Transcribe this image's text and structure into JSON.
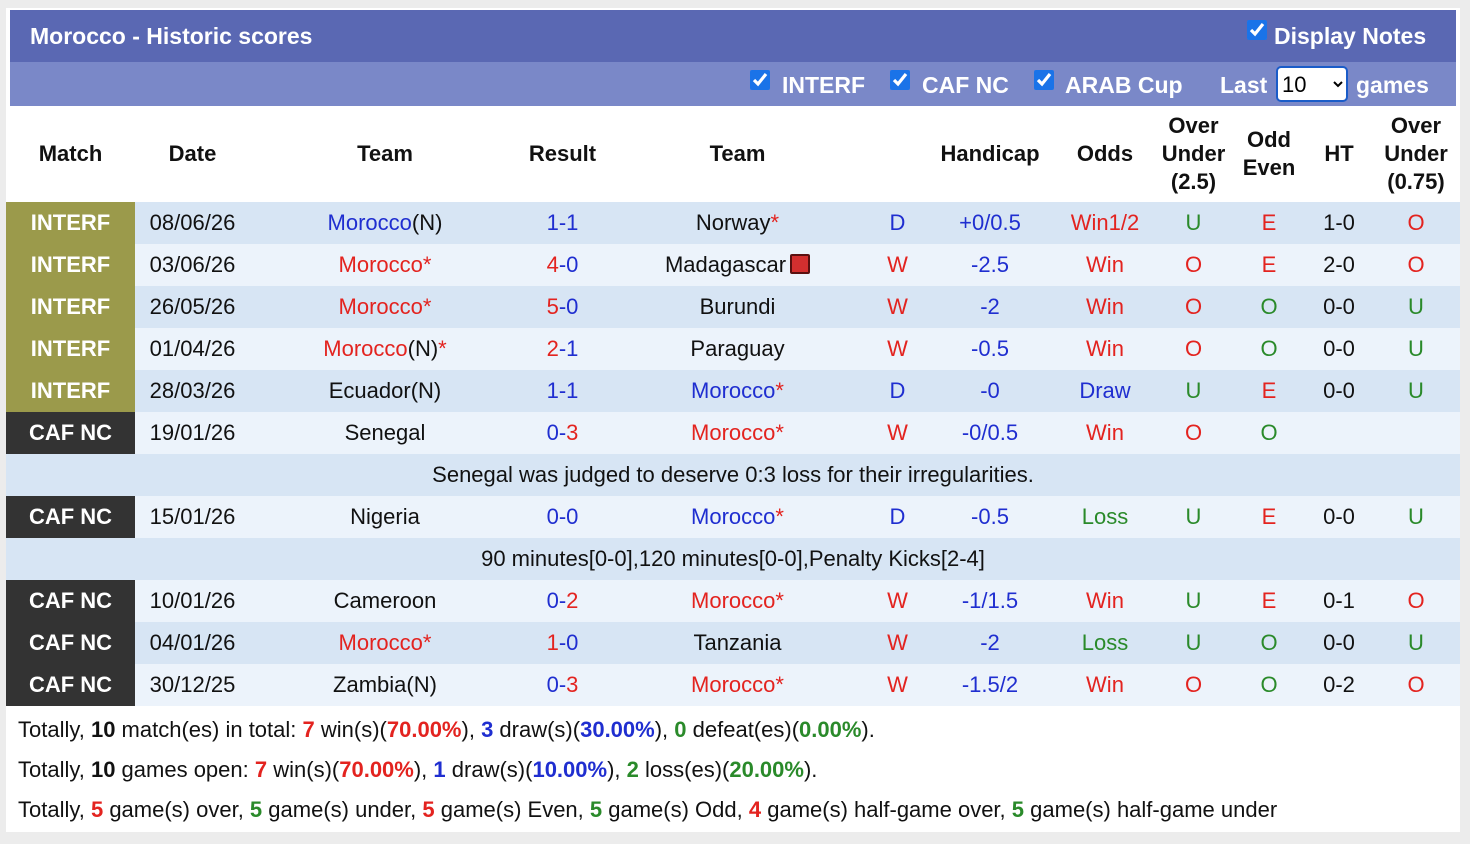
{
  "header": {
    "title": "Morocco - Historic scores",
    "display_notes": "Display Notes",
    "filters": [
      "INTERF",
      "CAF NC",
      "ARAB Cup"
    ],
    "last_label": "Last",
    "last_value": "10",
    "games_label": "games"
  },
  "colors": {
    "red": "#e3231f",
    "blue": "#1f2ed0",
    "green": "#2a8a2a",
    "black": "#111111",
    "INTERF": "#9b9a4b",
    "CAF NC": "#333333"
  },
  "palettes": {
    "outcome": {
      "W": "red",
      "D": "blue"
    },
    "odds": {
      "Win": "red",
      "Win1/2": "red",
      "Draw": "blue",
      "Loss": "green"
    },
    "ou": {
      "O": "red",
      "U": "green"
    },
    "oe": {
      "E": "red",
      "O": "green"
    }
  },
  "table": {
    "columns": [
      "Match",
      "Date",
      "Team",
      "Result",
      "Team",
      null,
      "Handicap",
      "Odds",
      "Over Under (2.5)",
      "Odd Even",
      "HT",
      "Over Under (0.75)"
    ],
    "score_separator": "-",
    "rows": [
      {
        "league": "INTERF",
        "date": "08/06/26",
        "home": {
          "name": "Morocco",
          "color": "blue",
          "note": "(N)"
        },
        "score": [
          "1",
          "1"
        ],
        "score_colors": [
          "blue",
          "blue"
        ],
        "away": {
          "name": "Norway",
          "color": "black",
          "star": "*"
        },
        "outcome": "D",
        "handicap": "+0/0.5",
        "odds": "Win1/2",
        "ou": "U",
        "oe": "E",
        "ht": "1-0",
        "ou2": "O"
      },
      {
        "league": "INTERF",
        "date": "03/06/26",
        "home": {
          "name": "Morocco",
          "color": "red",
          "star": "*"
        },
        "score": [
          "4",
          "0"
        ],
        "score_colors": [
          "red",
          "blue"
        ],
        "away": {
          "name": "Madagascar",
          "color": "black",
          "red_card": true
        },
        "outcome": "W",
        "handicap": "-2.5",
        "odds": "Win",
        "ou": "O",
        "oe": "E",
        "ht": "2-0",
        "ou2": "O"
      },
      {
        "league": "INTERF",
        "date": "26/05/26",
        "home": {
          "name": "Morocco",
          "color": "red",
          "star": "*"
        },
        "score": [
          "5",
          "0"
        ],
        "score_colors": [
          "red",
          "blue"
        ],
        "away": {
          "name": "Burundi",
          "color": "black"
        },
        "outcome": "W",
        "handicap": "-2",
        "odds": "Win",
        "ou": "O",
        "oe": "O",
        "ht": "0-0",
        "ou2": "U"
      },
      {
        "league": "INTERF",
        "date": "01/04/26",
        "home": {
          "name": "Morocco",
          "color": "red",
          "note": "(N)",
          "star": "*"
        },
        "score": [
          "2",
          "1"
        ],
        "score_colors": [
          "red",
          "blue"
        ],
        "away": {
          "name": "Paraguay",
          "color": "black"
        },
        "outcome": "W",
        "handicap": "-0.5",
        "odds": "Win",
        "ou": "O",
        "oe": "O",
        "ht": "0-0",
        "ou2": "U"
      },
      {
        "league": "INTERF",
        "date": "28/03/26",
        "home": {
          "name": "Ecuador",
          "color": "black",
          "note": "(N)"
        },
        "score": [
          "1",
          "1"
        ],
        "score_colors": [
          "blue",
          "blue"
        ],
        "away": {
          "name": "Morocco",
          "color": "blue",
          "star": "*"
        },
        "outcome": "D",
        "handicap": "-0",
        "odds": "Draw",
        "ou": "U",
        "oe": "E",
        "ht": "0-0",
        "ou2": "U"
      },
      {
        "league": "CAF NC",
        "date": "19/01/26",
        "home": {
          "name": "Senegal",
          "color": "black"
        },
        "score": [
          "0",
          "3"
        ],
        "score_colors": [
          "blue",
          "red"
        ],
        "away": {
          "name": "Morocco",
          "color": "red",
          "star": "*"
        },
        "outcome": "W",
        "handicap": "-0/0.5",
        "odds": "Win",
        "ou": "O",
        "oe": "O",
        "ht": null,
        "ou2": null,
        "note": "Senegal was judged to deserve 0:3 loss for their irregularities."
      },
      {
        "league": "CAF NC",
        "date": "15/01/26",
        "home": {
          "name": "Nigeria",
          "color": "black"
        },
        "score": [
          "0",
          "0"
        ],
        "score_colors": [
          "blue",
          "blue"
        ],
        "away": {
          "name": "Morocco",
          "color": "blue",
          "star": "*"
        },
        "outcome": "D",
        "handicap": "-0.5",
        "odds": "Loss",
        "ou": "U",
        "oe": "E",
        "ht": "0-0",
        "ou2": "U",
        "note": "90 minutes[0-0],120 minutes[0-0],Penalty Kicks[2-4]"
      },
      {
        "league": "CAF NC",
        "date": "10/01/26",
        "home": {
          "name": "Cameroon",
          "color": "black"
        },
        "score": [
          "0",
          "2"
        ],
        "score_colors": [
          "blue",
          "red"
        ],
        "away": {
          "name": "Morocco",
          "color": "red",
          "star": "*"
        },
        "outcome": "W",
        "handicap": "-1/1.5",
        "odds": "Win",
        "ou": "U",
        "oe": "E",
        "ht": "0-1",
        "ou2": "O"
      },
      {
        "league": "CAF NC",
        "date": "04/01/26",
        "home": {
          "name": "Morocco",
          "color": "red",
          "star": "*"
        },
        "score": [
          "1",
          "0"
        ],
        "score_colors": [
          "red",
          "blue"
        ],
        "away": {
          "name": "Tanzania",
          "color": "black"
        },
        "outcome": "W",
        "handicap": "-2",
        "odds": "Loss",
        "ou": "U",
        "oe": "O",
        "ht": "0-0",
        "ou2": "U"
      },
      {
        "league": "CAF NC",
        "date": "30/12/25",
        "home": {
          "name": "Zambia",
          "color": "black",
          "note": "(N)"
        },
        "score": [
          "0",
          "3"
        ],
        "score_colors": [
          "blue",
          "red"
        ],
        "away": {
          "name": "Morocco",
          "color": "red",
          "star": "*"
        },
        "outcome": "W",
        "handicap": "-1.5/2",
        "odds": "Win",
        "ou": "O",
        "oe": "O",
        "ht": "0-2",
        "ou2": "O"
      }
    ]
  },
  "summary": [
    [
      {
        "t": "Totally, "
      },
      {
        "t": "10",
        "c": "bold"
      },
      {
        "t": " match(es) in total: "
      },
      {
        "t": "7",
        "c": "red"
      },
      {
        "t": " win(s)("
      },
      {
        "t": "70.00%",
        "c": "red"
      },
      {
        "t": "), "
      },
      {
        "t": "3",
        "c": "blue"
      },
      {
        "t": " draw(s)("
      },
      {
        "t": "30.00%",
        "c": "blue"
      },
      {
        "t": "), "
      },
      {
        "t": "0",
        "c": "green"
      },
      {
        "t": " defeat(es)("
      },
      {
        "t": "0.00%",
        "c": "green"
      },
      {
        "t": ")."
      }
    ],
    [
      {
        "t": "Totally, "
      },
      {
        "t": "10",
        "c": "bold"
      },
      {
        "t": " games open: "
      },
      {
        "t": "7",
        "c": "red"
      },
      {
        "t": " win(s)("
      },
      {
        "t": "70.00%",
        "c": "red"
      },
      {
        "t": "), "
      },
      {
        "t": "1",
        "c": "blue"
      },
      {
        "t": " draw(s)("
      },
      {
        "t": "10.00%",
        "c": "blue"
      },
      {
        "t": "), "
      },
      {
        "t": "2",
        "c": "green"
      },
      {
        "t": " loss(es)("
      },
      {
        "t": "20.00%",
        "c": "green"
      },
      {
        "t": ")."
      }
    ],
    [
      {
        "t": "Totally, "
      },
      {
        "t": "5",
        "c": "red"
      },
      {
        "t": " game(s) over, "
      },
      {
        "t": "5",
        "c": "green"
      },
      {
        "t": " game(s) under, "
      },
      {
        "t": "5",
        "c": "red"
      },
      {
        "t": " game(s) Even, "
      },
      {
        "t": "5",
        "c": "green"
      },
      {
        "t": " game(s) Odd, "
      },
      {
        "t": "4",
        "c": "red"
      },
      {
        "t": " game(s) half-game over, "
      },
      {
        "t": "5",
        "c": "green"
      },
      {
        "t": " game(s) half-game under"
      }
    ]
  ]
}
